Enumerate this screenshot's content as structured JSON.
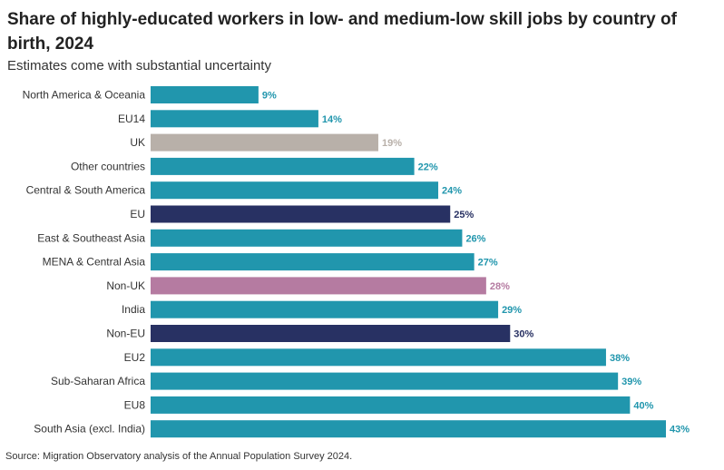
{
  "chart_data": {
    "type": "bar",
    "orientation": "horizontal",
    "title": "Share of highly-educated workers in low- and medium-low skill jobs by country of birth, 2024",
    "subtitle": "Estimates come with substantial uncertainty",
    "source": "Source: Migration Observatory analysis of the Annual Population Survey 2024.",
    "categories": [
      "North America & Oceania",
      "EU14",
      "UK",
      "Other countries",
      "Central & South America",
      "EU",
      "East & Southeast Asia",
      "MENA & Central Asia",
      "Non-UK",
      "India",
      "Non-EU",
      "EU2",
      "Sub-Saharan Africa",
      "EU8",
      "South Asia (excl. India)"
    ],
    "values": [
      9,
      14,
      19,
      22,
      24,
      25,
      26,
      27,
      28,
      29,
      30,
      38,
      39,
      40,
      43
    ],
    "value_labels": [
      "9%",
      "14%",
      "19%",
      "22%",
      "24%",
      "25%",
      "26%",
      "27%",
      "28%",
      "29%",
      "30%",
      "38%",
      "39%",
      "40%",
      "43%"
    ],
    "bar_colors": [
      "#2196ad",
      "#2196ad",
      "#b8b0a9",
      "#2196ad",
      "#2196ad",
      "#283163",
      "#2196ad",
      "#2196ad",
      "#b57ba1",
      "#2196ad",
      "#283163",
      "#2196ad",
      "#2196ad",
      "#2196ad",
      "#2196ad"
    ],
    "label_colors": [
      "#2196ad",
      "#2196ad",
      "#b8b0a9",
      "#2196ad",
      "#2196ad",
      "#283163",
      "#2196ad",
      "#2196ad",
      "#b57ba1",
      "#2196ad",
      "#283163",
      "#2196ad",
      "#2196ad",
      "#2196ad",
      "#2196ad"
    ],
    "xlim": [
      0,
      43
    ],
    "xlabel": "",
    "ylabel": "",
    "grid": false
  }
}
